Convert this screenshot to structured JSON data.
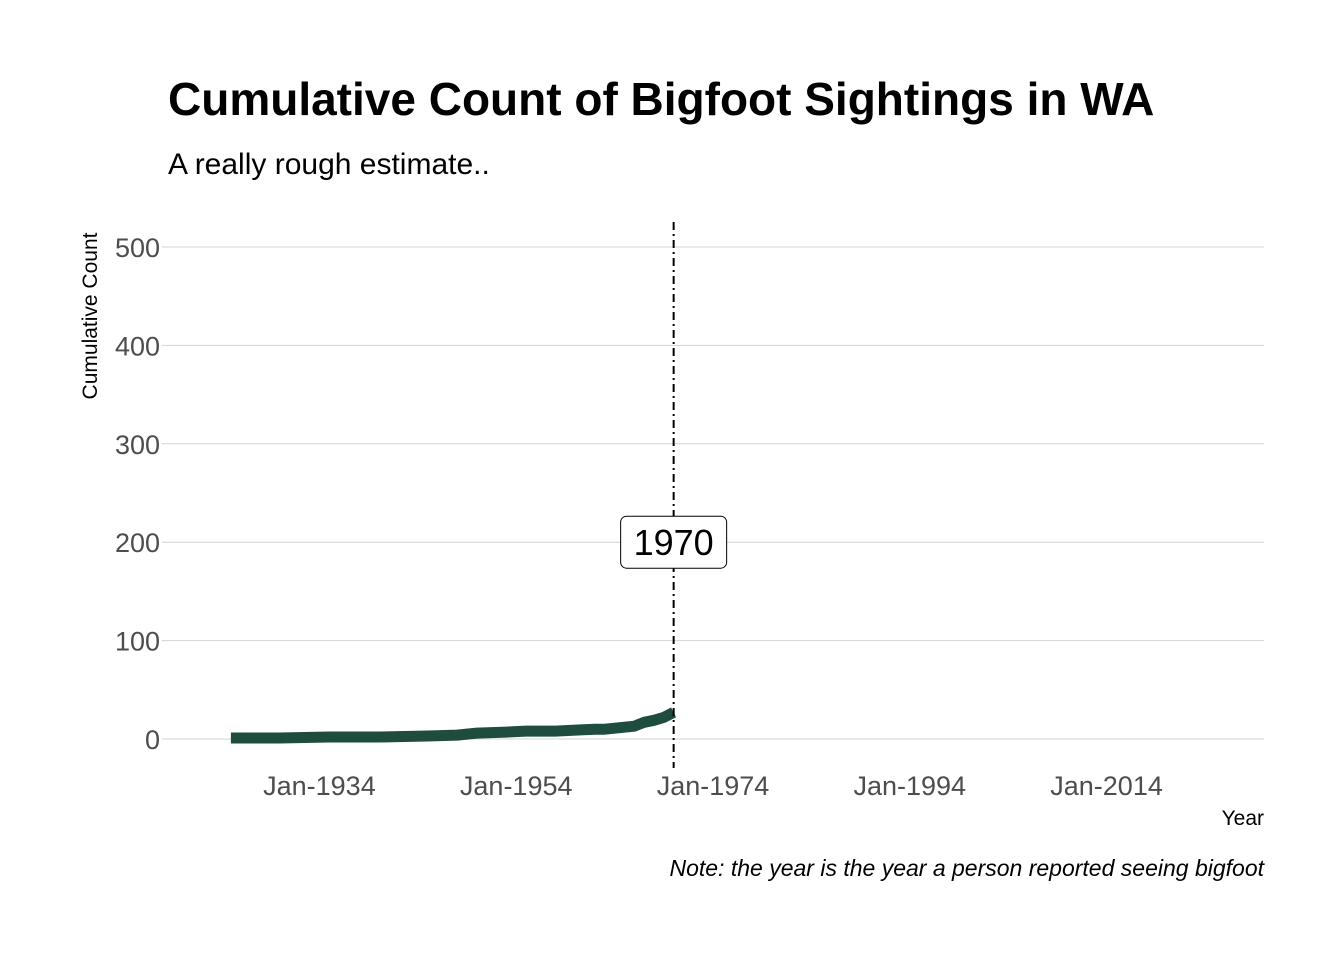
{
  "title": "Cumulative Count of Bigfoot Sightings in WA",
  "subtitle": "A really rough estimate..",
  "caption": "Note: the year is the year a person reported seeing bigfoot",
  "colors": {
    "line": "#1e4d40",
    "grid": "#d3d3d3",
    "ref_line": "#000000",
    "tick_text": "#4d4d4d"
  },
  "chart_data": {
    "type": "line",
    "xlabel": "Year",
    "ylabel": "Cumulative Count",
    "xlim": [
      "1918-01-01",
      "2030-01-01"
    ],
    "ylim": [
      0,
      500
    ],
    "grid": "horizontal",
    "yticks": [
      0,
      100,
      200,
      300,
      400,
      500
    ],
    "xticks": [
      {
        "date": "1934-01-01",
        "label": "Jan-1934"
      },
      {
        "date": "1954-01-01",
        "label": "Jan-1954"
      },
      {
        "date": "1974-01-01",
        "label": "Jan-1974"
      },
      {
        "date": "1994-01-01",
        "label": "Jan-1994"
      },
      {
        "date": "2014-01-01",
        "label": "Jan-2014"
      }
    ],
    "series": [
      {
        "x": [
          "1925-01-01",
          "1930-01-01",
          "1935-01-01",
          "1940-01-01",
          "1945-01-01",
          "1948-01-01",
          "1950-01-01",
          "1953-01-01",
          "1955-01-01",
          "1958-01-01",
          "1960-01-01",
          "1962-01-01",
          "1963-01-01",
          "1964-01-01",
          "1965-01-01",
          "1966-01-01",
          "1967-01-01",
          "1968-01-01",
          "1969-01-01",
          "1970-01-01"
        ],
        "y": [
          1,
          1,
          2,
          2,
          3,
          4,
          6,
          7,
          8,
          8,
          9,
          10,
          10,
          11,
          12,
          13,
          17,
          19,
          22,
          27
        ]
      }
    ],
    "reference_line": {
      "x": "1970-01-01",
      "style": "dashdot"
    },
    "annotations": [
      {
        "text": "1970",
        "x": "1970-01-01",
        "y": 200
      }
    ]
  }
}
